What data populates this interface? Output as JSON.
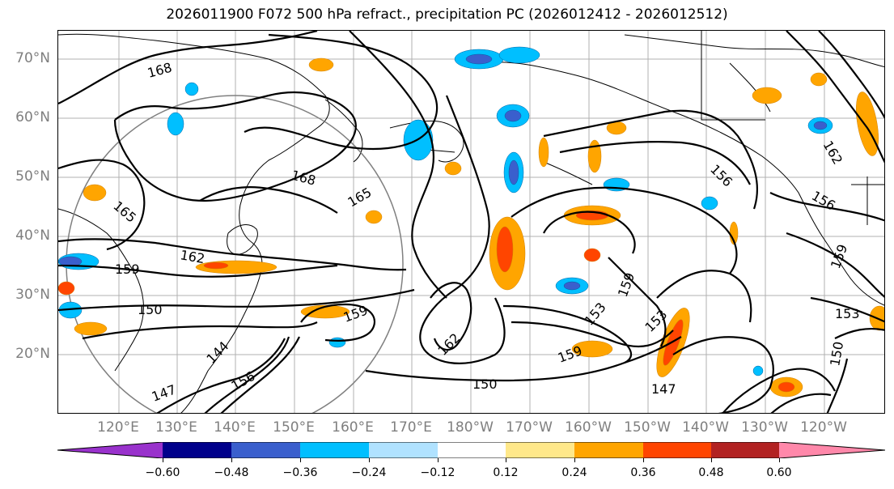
{
  "title": "2026011900 F072 500 hPa refract., precipitation PC (2026012412 - 2026012512)",
  "latitude_labels": [
    "70°N",
    "60°N",
    "50°N",
    "40°N",
    "30°N",
    "20°N"
  ],
  "longitude_labels": [
    "120°E",
    "130°E",
    "140°E",
    "150°E",
    "160°E",
    "170°E",
    "180°W",
    "170°W",
    "160°W",
    "150°W",
    "140°W",
    "130°W",
    "120°W"
  ],
  "contour_labels": [
    "168",
    "168",
    "165",
    "165",
    "162",
    "159",
    "150",
    "144",
    "147",
    "156",
    "159",
    "162",
    "150",
    "159",
    "153",
    "153",
    "147",
    "159",
    "156",
    "159",
    "153",
    "150",
    "162",
    "156"
  ],
  "colorbar": {
    "ticks": [
      "−0.60",
      "−0.48",
      "−0.36",
      "−0.24",
      "−0.12",
      "0.12",
      "0.24",
      "0.36",
      "0.48",
      "0.60"
    ],
    "colors": [
      "#9932cc",
      "#00008b",
      "#3a5fcd",
      "#00bfff",
      "#b0e2ff",
      "#ffffff",
      "#ffe88a",
      "#ffa500",
      "#ff4500",
      "#b22222",
      "#ff88aa"
    ]
  }
}
